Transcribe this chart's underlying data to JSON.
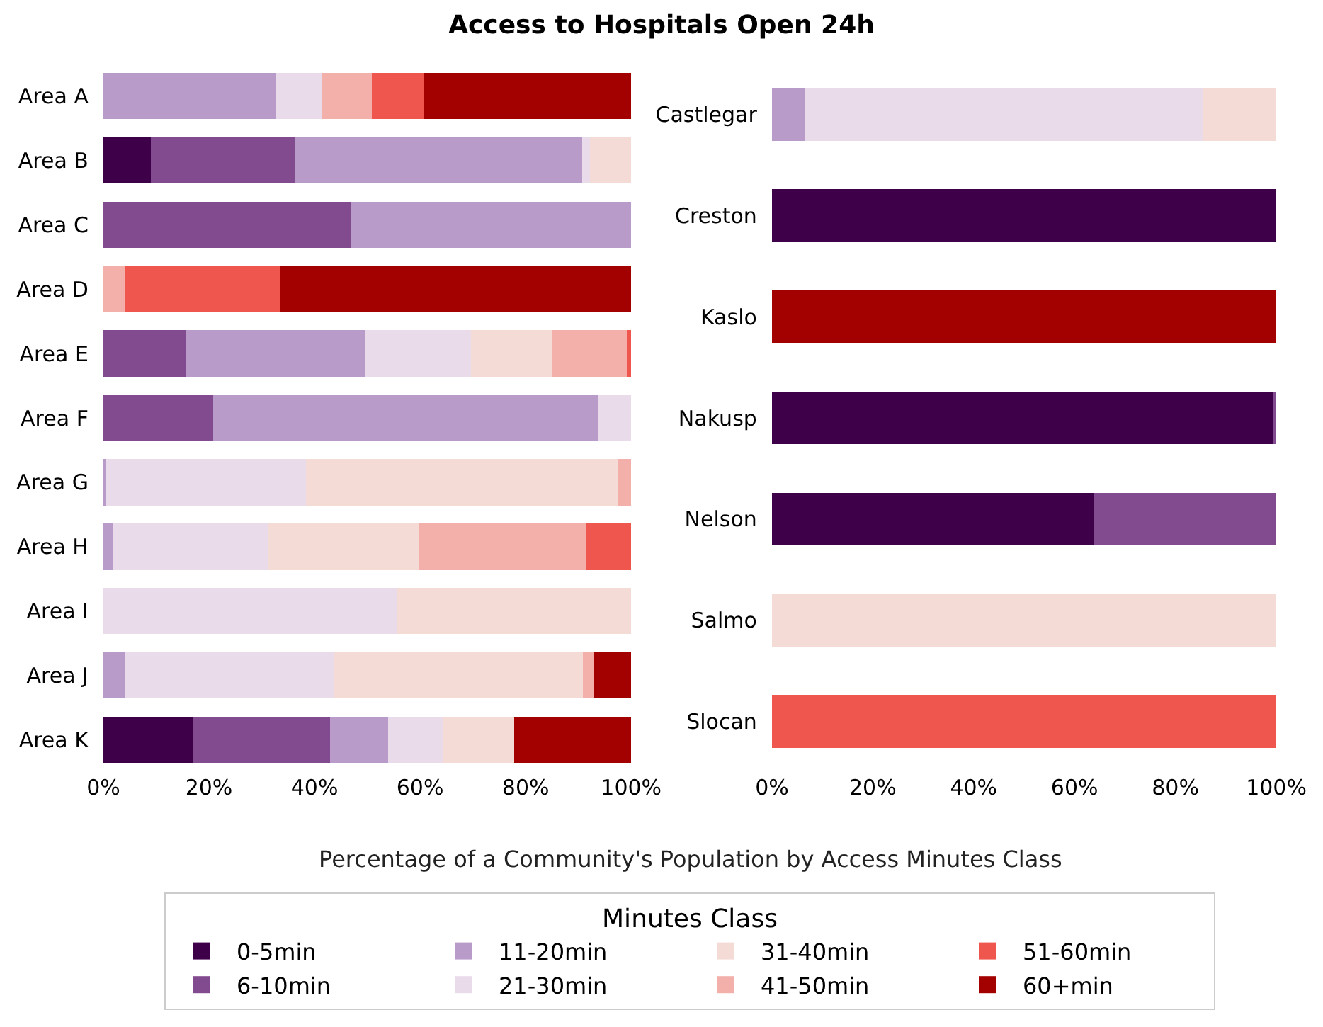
{
  "chart_data": [
    {
      "type": "bar",
      "orientation": "horizontal",
      "stacked": true,
      "title": "Access to Hospitals Open 24h",
      "xlabel": "Percentage of a Community's Population by Access Minutes Class",
      "legend_title": "Minutes Class",
      "legend": "bottom",
      "categories": [
        "Area A",
        "Area B",
        "Area C",
        "Area D",
        "Area E",
        "Area F",
        "Area G",
        "Area H",
        "Area I",
        "Area J",
        "Area K"
      ],
      "xlim": [
        0,
        100
      ],
      "xticks": [
        {
          "value": 0,
          "label": "0%"
        },
        {
          "value": 20,
          "label": "20%"
        },
        {
          "value": 40,
          "label": "40%"
        },
        {
          "value": 60,
          "label": "60%"
        },
        {
          "value": 80,
          "label": "80%"
        },
        {
          "value": 100,
          "label": "100%"
        }
      ],
      "series": [
        {
          "name": "0-5min",
          "color": "#3f004a",
          "values": [
            null,
            9.0,
            null,
            null,
            null,
            null,
            null,
            null,
            null,
            null,
            17.1
          ]
        },
        {
          "name": "6-10min",
          "color": "#824a8f",
          "values": [
            null,
            27.2,
            47.0,
            null,
            15.7,
            20.8,
            null,
            null,
            null,
            null,
            25.8
          ]
        },
        {
          "name": "11-20min",
          "color": "#b89bc8",
          "values": [
            32.6,
            54.5,
            53.0,
            null,
            33.9,
            73.0,
            0.6,
            1.9,
            null,
            4.0,
            11.1
          ]
        },
        {
          "name": "21-30min",
          "color": "#e9dbea",
          "values": [
            8.8,
            1.5,
            null,
            null,
            20.1,
            6.2,
            37.8,
            29.4,
            55.6,
            39.7,
            10.3
          ]
        },
        {
          "name": "31-40min",
          "color": "#f5dbd6",
          "values": [
            null,
            7.8,
            null,
            null,
            15.3,
            null,
            59.2,
            28.6,
            44.4,
            47.2,
            13.5
          ]
        },
        {
          "name": "41-50min",
          "color": "#f3afaa",
          "values": [
            9.5,
            null,
            null,
            4.0,
            14.2,
            null,
            2.4,
            31.6,
            null,
            2.0,
            null
          ]
        },
        {
          "name": "51-60min",
          "color": "#ef574e",
          "values": [
            9.8,
            null,
            null,
            29.6,
            0.8,
            null,
            null,
            8.5,
            null,
            null,
            null
          ]
        },
        {
          "name": "60+min",
          "color": "#a30000",
          "values": [
            39.3,
            null,
            null,
            66.4,
            null,
            null,
            null,
            null,
            null,
            7.1,
            22.2
          ]
        }
      ]
    },
    {
      "type": "bar",
      "orientation": "horizontal",
      "stacked": true,
      "categories": [
        "Castlegar",
        "Creston",
        "Kaslo",
        "Nakusp",
        "Nelson",
        "Salmo",
        "Slocan"
      ],
      "xlim": [
        0,
        100
      ],
      "xticks": [
        {
          "value": 0,
          "label": "0%"
        },
        {
          "value": 20,
          "label": "20%"
        },
        {
          "value": 40,
          "label": "40%"
        },
        {
          "value": 60,
          "label": "60%"
        },
        {
          "value": 80,
          "label": "80%"
        },
        {
          "value": 100,
          "label": "100%"
        }
      ],
      "series": [
        {
          "color": "#3f004a",
          "values": [
            null,
            100,
            null,
            99.5,
            63.7,
            null,
            null
          ]
        },
        {
          "color": "#824a8f",
          "values": [
            null,
            null,
            null,
            0.5,
            36.3,
            null,
            null
          ]
        },
        {
          "color": "#b89bc8",
          "values": [
            6.5,
            null,
            null,
            null,
            null,
            null,
            null
          ]
        },
        {
          "color": "#e9dbea",
          "values": [
            78.9,
            null,
            null,
            null,
            null,
            null,
            null
          ]
        },
        {
          "color": "#f5dbd6",
          "values": [
            14.6,
            null,
            null,
            null,
            null,
            100,
            null
          ]
        },
        {
          "color": "#f3afaa",
          "values": [
            null,
            null,
            null,
            null,
            null,
            null,
            null
          ]
        },
        {
          "color": "#ef574e",
          "values": [
            null,
            null,
            null,
            null,
            null,
            null,
            100
          ]
        },
        {
          "color": "#a30000",
          "values": [
            null,
            null,
            100,
            null,
            null,
            null,
            null
          ]
        }
      ]
    }
  ]
}
